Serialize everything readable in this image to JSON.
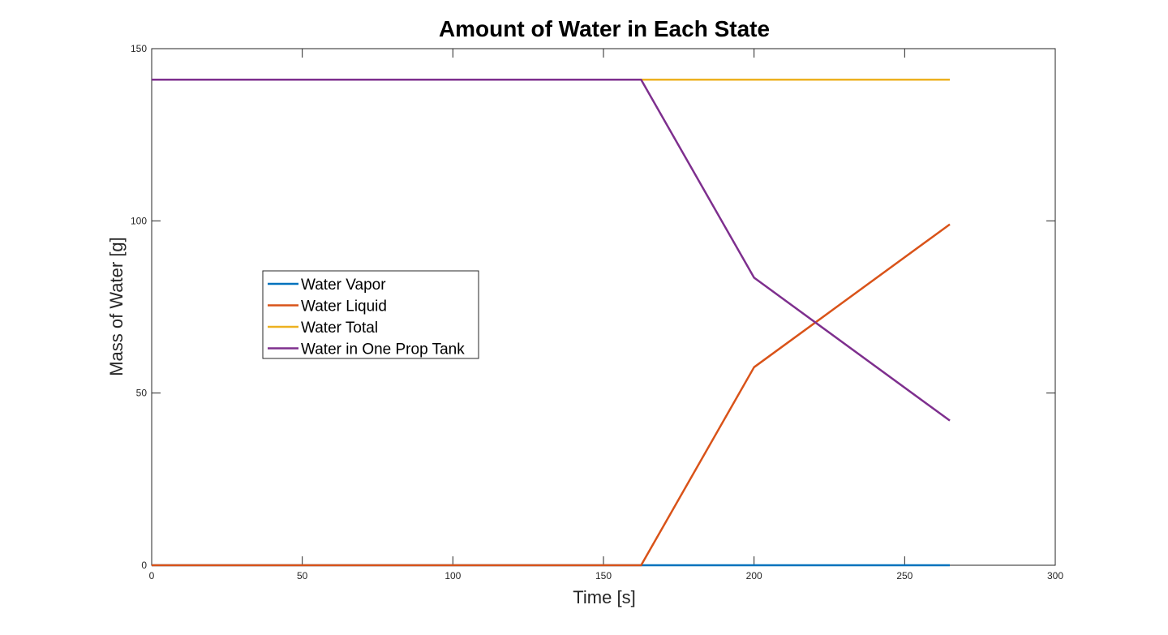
{
  "chart_data": {
    "type": "line",
    "title": "Amount of Water in Each State",
    "xlabel": "Time [s]",
    "ylabel": "Mass of Water [g]",
    "xlim": [
      0,
      300
    ],
    "ylim": [
      0,
      150
    ],
    "xticks": [
      0,
      50,
      100,
      150,
      200,
      250,
      300
    ],
    "yticks": [
      0,
      50,
      100,
      150
    ],
    "grid": false,
    "legend_position": "center-left",
    "series": [
      {
        "name": "Water Vapor",
        "color": "#0072BD",
        "points": [
          [
            0,
            0
          ],
          [
            162.5,
            0
          ],
          [
            200,
            0
          ],
          [
            265,
            0
          ]
        ]
      },
      {
        "name": "Water Liquid",
        "color": "#D95319",
        "points": [
          [
            0,
            0
          ],
          [
            162.5,
            0
          ],
          [
            200,
            57.5
          ],
          [
            265,
            99
          ]
        ]
      },
      {
        "name": "Water Total",
        "color": "#EDB120",
        "points": [
          [
            0,
            141
          ],
          [
            162.5,
            141
          ],
          [
            200,
            141
          ],
          [
            265,
            141
          ]
        ]
      },
      {
        "name": "Water in One Prop Tank",
        "color": "#7E2F8E",
        "points": [
          [
            0,
            141
          ],
          [
            162.5,
            141
          ],
          [
            200,
            83.5
          ],
          [
            265,
            42
          ]
        ]
      }
    ]
  }
}
